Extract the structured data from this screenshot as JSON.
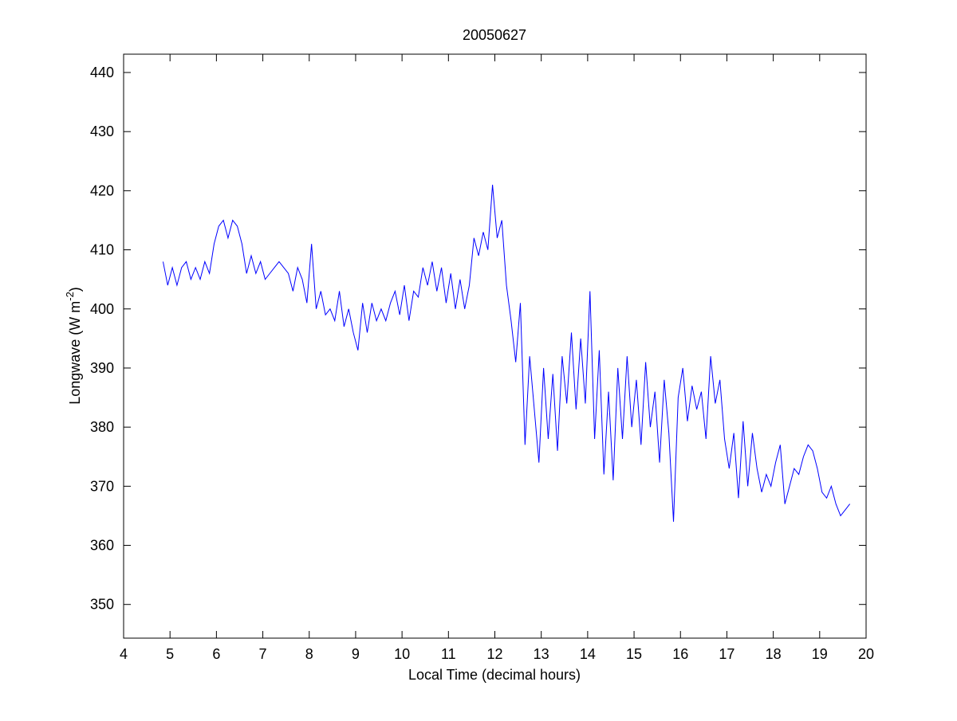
{
  "chart_data": {
    "type": "line",
    "title": "20050627",
    "x_label": "Local Time (decimal hours)",
    "y_label": "Longwave (W m",
    "y_label_sup": "-2",
    "y_label_end": ")",
    "xlim": [
      4,
      20
    ],
    "xticks": [
      4,
      5,
      6,
      7,
      8,
      9,
      10,
      11,
      12,
      13,
      14,
      15,
      16,
      17,
      18,
      19,
      20
    ],
    "ylim": [
      344.3,
      443.1
    ],
    "yticks": [
      350,
      360,
      370,
      380,
      390,
      400,
      410,
      420,
      430,
      440
    ],
    "grid": false,
    "x": [
      4.85,
      4.95,
      5.05,
      5.15,
      5.25,
      5.35,
      5.45,
      5.55,
      5.65,
      5.75,
      5.85,
      5.95,
      6.05,
      6.15,
      6.25,
      6.35,
      6.45,
      6.55,
      6.65,
      6.75,
      6.85,
      6.95,
      7.05,
      7.15,
      7.25,
      7.35,
      7.45,
      7.55,
      7.65,
      7.75,
      7.85,
      7.95,
      8.05,
      8.15,
      8.25,
      8.35,
      8.45,
      8.55,
      8.65,
      8.75,
      8.85,
      8.95,
      9.05,
      9.15,
      9.25,
      9.35,
      9.45,
      9.55,
      9.65,
      9.75,
      9.85,
      9.95,
      10.05,
      10.15,
      10.25,
      10.35,
      10.45,
      10.55,
      10.65,
      10.75,
      10.85,
      10.95,
      11.05,
      11.15,
      11.25,
      11.35,
      11.45,
      11.55,
      11.65,
      11.75,
      11.85,
      11.95,
      12.05,
      12.15,
      12.25,
      12.35,
      12.45,
      12.55,
      12.65,
      12.75,
      12.85,
      12.95,
      13.05,
      13.15,
      13.25,
      13.35,
      13.45,
      13.55,
      13.65,
      13.75,
      13.85,
      13.95,
      14.05,
      14.15,
      14.25,
      14.35,
      14.45,
      14.55,
      14.65,
      14.75,
      14.85,
      14.95,
      15.05,
      15.15,
      15.25,
      15.35,
      15.45,
      15.55,
      15.65,
      15.75,
      15.85,
      15.95,
      16.05,
      16.15,
      16.25,
      16.35,
      16.45,
      16.55,
      16.65,
      16.75,
      16.85,
      16.95,
      17.05,
      17.15,
      17.25,
      17.35,
      17.45,
      17.55,
      17.65,
      17.75,
      17.85,
      17.95,
      18.05,
      18.15,
      18.25,
      18.35,
      18.45,
      18.55,
      18.65,
      18.75,
      18.85,
      18.95,
      19.05,
      19.15,
      19.25,
      19.35,
      19.45,
      19.55,
      19.65
    ],
    "series": [
      {
        "color": "#0000ff",
        "values": [
          408,
          404,
          407,
          404,
          407,
          408,
          405,
          407,
          405,
          408,
          406,
          411,
          414,
          415,
          412,
          415,
          414,
          411,
          406,
          409,
          406,
          408,
          405,
          406,
          407,
          408,
          407,
          406,
          403,
          407,
          405,
          401,
          411,
          400,
          403,
          399,
          400,
          398,
          403,
          397,
          400,
          396,
          393,
          401,
          396,
          401,
          398,
          400,
          398,
          401,
          403,
          399,
          404,
          398,
          403,
          402,
          407,
          404,
          408,
          403,
          407,
          401,
          406,
          400,
          405,
          400,
          404,
          412,
          409,
          413,
          410,
          421,
          412,
          415,
          404,
          398,
          391,
          401,
          377,
          392,
          383,
          374,
          390,
          378,
          389,
          376,
          392,
          384,
          396,
          383,
          395,
          384,
          403,
          378,
          393,
          372,
          386,
          371,
          390,
          378,
          392,
          380,
          388,
          377,
          391,
          380,
          386,
          374,
          388,
          379,
          364,
          385,
          390,
          381,
          387,
          383,
          386,
          378,
          392,
          384,
          388,
          378,
          373,
          379,
          368,
          381,
          370,
          379,
          373,
          369,
          372,
          370,
          374,
          377,
          367,
          370,
          373,
          372,
          375,
          377,
          376,
          373,
          369,
          368,
          370,
          367,
          365,
          366,
          367
        ]
      }
    ]
  }
}
